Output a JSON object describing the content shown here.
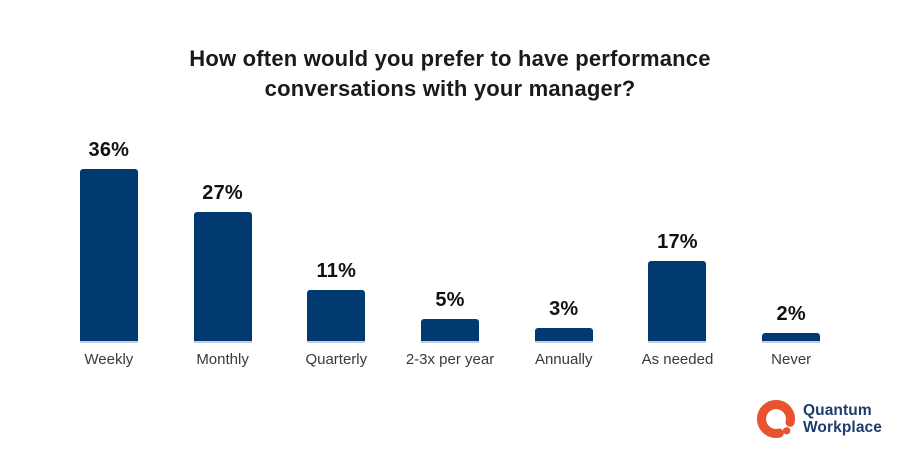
{
  "title": {
    "lines": [
      "How often would you prefer to have performance",
      "conversations with your manager?"
    ]
  },
  "chart_data": {
    "type": "bar",
    "title": "How often would you prefer to have performance conversations with your manager?",
    "categories": [
      "Weekly",
      "Monthly",
      "Quarterly",
      "2-3x per year",
      "Annually",
      "As needed",
      "Never"
    ],
    "values": [
      36,
      27,
      11,
      5,
      3,
      17,
      2
    ],
    "value_labels": [
      "36%",
      "27%",
      "11%",
      "5%",
      "3%",
      "17%",
      "2%"
    ],
    "xlabel": "",
    "ylabel": "",
    "ylim": [
      0,
      40
    ],
    "grid": false,
    "legend": false,
    "bar_color": "#003a70",
    "value_label_color": "#111111",
    "category_label_color": "#3a3a3a"
  },
  "logo": {
    "name_line1": "Quantum",
    "name_line2": "Workplace",
    "icon_color": "#e8532e",
    "text_color": "#1e3c6d"
  }
}
